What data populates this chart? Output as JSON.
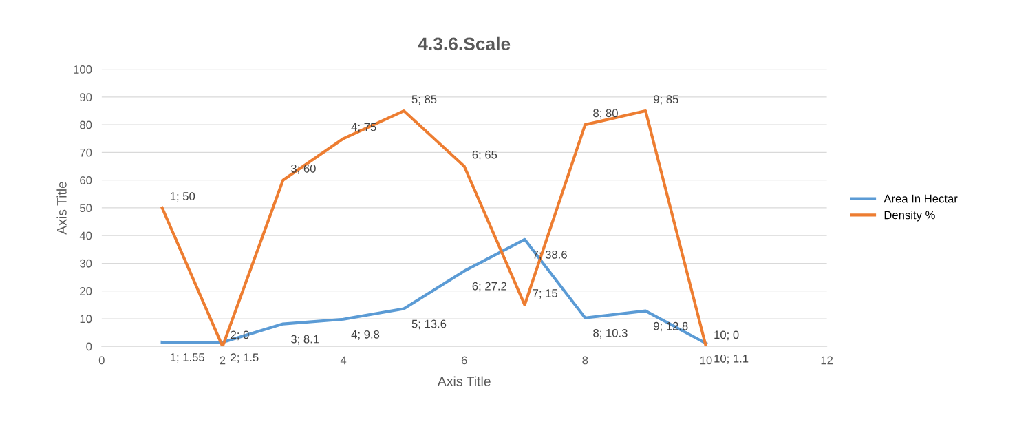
{
  "chart_data": {
    "type": "line",
    "title": "4.3.6.Scale",
    "xlabel": "Axis Title",
    "ylabel": "Axis Title",
    "x": [
      1,
      2,
      3,
      4,
      5,
      6,
      7,
      8,
      9,
      10
    ],
    "series": [
      {
        "name": "Area In Hectar",
        "color": "#5b9bd5",
        "values": [
          1.55,
          1.5,
          8.1,
          9.8,
          13.6,
          27.2,
          38.6,
          10.3,
          12.8,
          1.1
        ],
        "value_labels": [
          "1; 1.55",
          "2; 1.5",
          "3; 8.1",
          "4; 9.8",
          "5; 13.6",
          "6; 27.2",
          "7; 38.6",
          "8; 10.3",
          "9; 12.8",
          "10; 1.1"
        ]
      },
      {
        "name": "Density %",
        "color": "#ed7d31",
        "values": [
          50,
          0,
          60,
          75,
          85,
          65,
          15,
          80,
          85,
          0
        ],
        "value_labels": [
          "1; 50",
          "2; 0",
          "3; 60",
          "4; 75",
          "5; 85",
          "6; 65",
          "7; 15",
          "8; 80",
          "9; 85",
          "10; 0"
        ]
      }
    ],
    "xlim": [
      0,
      12
    ],
    "xticks": [
      0,
      2,
      4,
      6,
      8,
      10,
      12
    ],
    "ylim": [
      0,
      100
    ],
    "yticks": [
      0,
      10,
      20,
      30,
      40,
      50,
      60,
      70,
      80,
      90,
      100
    ],
    "grid": "y",
    "legend": "right",
    "marker": "none",
    "line_style": "solid"
  }
}
